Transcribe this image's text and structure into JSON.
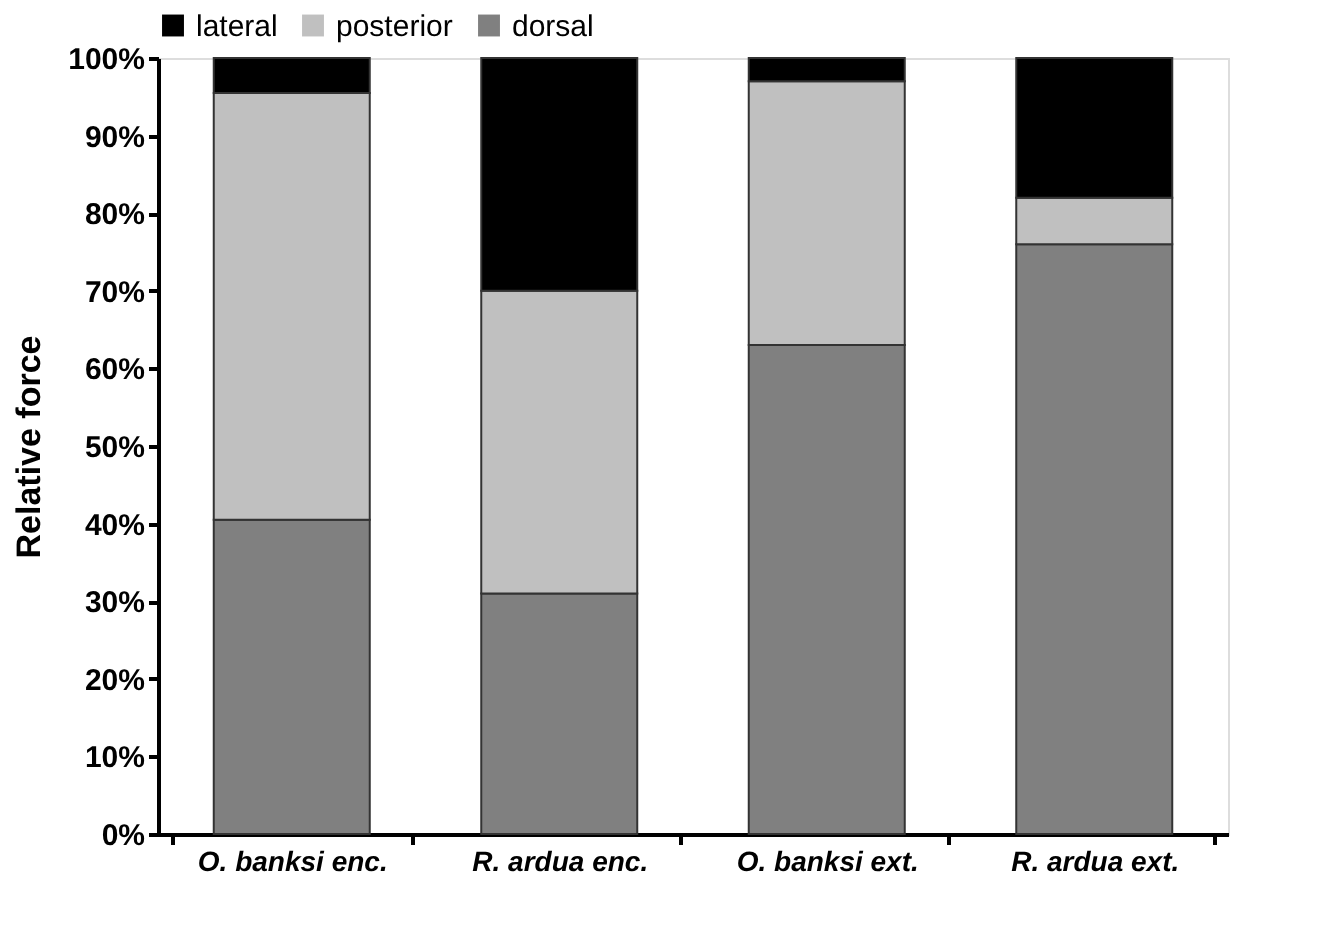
{
  "chart_data": {
    "type": "bar",
    "stacked": true,
    "ylabel": "Relative force",
    "categories": [
      "O. banksi enc.",
      "R. ardua enc.",
      "O. banksi ext.",
      "R. ardua ext."
    ],
    "series": [
      {
        "name": "dorsal",
        "color": "#808080",
        "values": [
          40.5,
          31,
          63,
          76
        ]
      },
      {
        "name": "posterior",
        "color": "#c0c0c0",
        "values": [
          55,
          39,
          34,
          6
        ]
      },
      {
        "name": "lateral",
        "color": "#000000",
        "values": [
          4.5,
          30,
          3,
          18
        ]
      }
    ],
    "ylim": [
      0,
      100
    ],
    "yticks": [
      {
        "value": 0,
        "label": "0%"
      },
      {
        "value": 10,
        "label": "10%"
      },
      {
        "value": 20,
        "label": "20%"
      },
      {
        "value": 30,
        "label": "30%"
      },
      {
        "value": 40,
        "label": "40%"
      },
      {
        "value": 50,
        "label": "50%"
      },
      {
        "value": 60,
        "label": "60%"
      },
      {
        "value": 70,
        "label": "70%"
      },
      {
        "value": 80,
        "label": "80%"
      },
      {
        "value": 90,
        "label": "90%"
      },
      {
        "value": 100,
        "label": "100%"
      }
    ],
    "grid": false,
    "legend": "top left"
  }
}
